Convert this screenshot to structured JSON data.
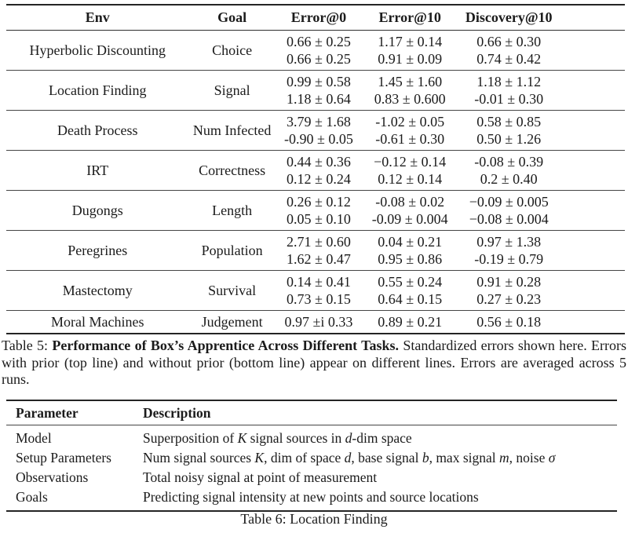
{
  "colors": {
    "background": "#ffffff",
    "text": "#1b1b1b",
    "rule_heavy": "#242424",
    "rule_light": "#454545"
  },
  "table5": {
    "headers": [
      "Env",
      "Goal",
      "Error@0",
      "Error@10",
      "Discovery@10"
    ],
    "rows": [
      {
        "env": "Hyperbolic Discounting",
        "goal": "Choice",
        "error0": [
          "0.66 ± 0.25",
          "0.66 ± 0.25"
        ],
        "error10": [
          "1.17 ± 0.14",
          "0.91 ± 0.09"
        ],
        "discovery10": [
          "0.66 ± 0.30",
          "0.74 ± 0.42"
        ]
      },
      {
        "env": "Location Finding",
        "goal": "Signal",
        "error0": [
          "0.99 ± 0.58",
          "1.18 ± 0.64"
        ],
        "error10": [
          "1.45 ± 1.60",
          "0.83 ± 0.600"
        ],
        "discovery10": [
          "1.18 ± 1.12",
          "-0.01 ± 0.30"
        ]
      },
      {
        "env": "Death Process",
        "goal": "Num Infected",
        "error0": [
          "3.79 ± 1.68",
          "-0.90 ± 0.05"
        ],
        "error10": [
          "-1.02 ± 0.05",
          "-0.61 ± 0.30"
        ],
        "discovery10": [
          "0.58 ± 0.85",
          "0.50 ± 1.26"
        ]
      },
      {
        "env": "IRT",
        "goal": "Correctness",
        "error0": [
          "0.44 ± 0.36",
          "0.12 ± 0.24"
        ],
        "error10": [
          "−0.12 ± 0.14",
          "0.12 ± 0.14"
        ],
        "discovery10": [
          "-0.08 ± 0.39",
          "0.2 ± 0.40"
        ]
      },
      {
        "env": "Dugongs",
        "goal": "Length",
        "error0": [
          "0.26 ± 0.12",
          "0.05 ± 0.10"
        ],
        "error10": [
          "-0.08 ± 0.02",
          "-0.09 ± 0.004"
        ],
        "discovery10": [
          "−0.09 ± 0.005",
          "−0.08 ± 0.004"
        ]
      },
      {
        "env": "Peregrines",
        "goal": "Population",
        "error0": [
          "2.71 ± 0.60",
          "1.62 ± 0.47"
        ],
        "error10": [
          "0.04 ± 0.21",
          "0.95 ± 0.86"
        ],
        "discovery10": [
          "0.97 ± 1.38",
          "-0.19 ± 0.79"
        ]
      },
      {
        "env": "Mastectomy",
        "goal": "Survival",
        "error0": [
          "0.14 ± 0.41",
          "0.73 ± 0.15"
        ],
        "error10": [
          "0.55 ± 0.24",
          "0.64 ± 0.15"
        ],
        "discovery10": [
          "0.91 ± 0.28",
          "0.27 ± 0.23"
        ]
      },
      {
        "env": "Moral Machines",
        "goal": "Judgement",
        "error0": [
          "0.97 ±i 0.33"
        ],
        "error10": [
          "0.89 ± 0.21"
        ],
        "discovery10": [
          "0.56 ± 0.18"
        ]
      }
    ],
    "caption": [
      {
        "t": "Table 5: "
      },
      {
        "b": "Performance of Box’s Apprentice Across Different Tasks."
      },
      {
        "t": " Standardized errors shown here. Errors with prior (top line) and without prior (bottom line) appear on different lines. Errors are averaged across 5 runs."
      }
    ]
  },
  "table6": {
    "headers": [
      "Parameter",
      "Description"
    ],
    "rows": [
      {
        "param": "Model",
        "desc": [
          {
            "t": "Superposition of "
          },
          {
            "v": "K"
          },
          {
            "t": " signal sources in "
          },
          {
            "v": "d"
          },
          {
            "t": "-dim space"
          }
        ]
      },
      {
        "param": "Setup Parameters",
        "desc": [
          {
            "t": "Num signal sources "
          },
          {
            "v": "K"
          },
          {
            "t": ", dim of space "
          },
          {
            "v": "d"
          },
          {
            "t": ", base signal "
          },
          {
            "v": "b"
          },
          {
            "t": ", max signal "
          },
          {
            "v": "m"
          },
          {
            "t": ", noise "
          },
          {
            "v": "σ"
          }
        ]
      },
      {
        "param": "Observations",
        "desc": [
          {
            "t": "Total noisy signal at point of measurement"
          }
        ]
      },
      {
        "param": "Goals",
        "desc": [
          {
            "t": "Predicting signal intensity at new points and source locations"
          }
        ]
      }
    ],
    "caption": "Table 6: Location Finding"
  }
}
